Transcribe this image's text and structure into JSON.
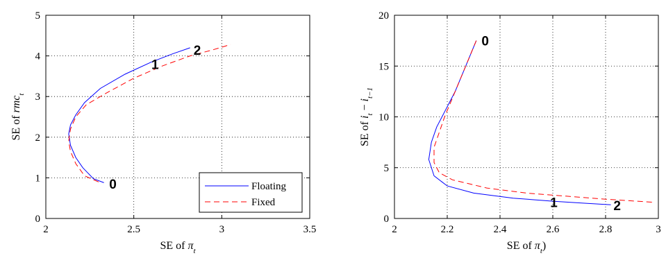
{
  "chart_data": [
    {
      "type": "line",
      "xlabel": "SE of π_t",
      "ylabel": "SE of rmc_t",
      "xlim": [
        2,
        3.5
      ],
      "ylim": [
        0,
        5
      ],
      "xticks": [
        "2",
        "2.5",
        "3",
        "3.5"
      ],
      "yticks": [
        "0",
        "1",
        "2",
        "3",
        "4",
        "5"
      ],
      "grid": true,
      "legend": {
        "position": "bottom-right",
        "entries": [
          "Floating",
          "Fixed"
        ]
      },
      "series": [
        {
          "name": "Floating",
          "color": "#0000ff",
          "dash": "solid",
          "x": [
            2.33,
            2.27,
            2.21,
            2.17,
            2.14,
            2.13,
            2.14,
            2.17,
            2.22,
            2.31,
            2.45,
            2.6,
            2.72,
            2.82
          ],
          "y": [
            0.88,
            0.98,
            1.25,
            1.5,
            1.8,
            2.08,
            2.3,
            2.55,
            2.85,
            3.2,
            3.55,
            3.85,
            4.05,
            4.2
          ]
        },
        {
          "name": "Fixed",
          "color": "#ff0000",
          "dash": "dashed",
          "x": [
            2.3,
            2.22,
            2.17,
            2.14,
            2.13,
            2.14,
            2.17,
            2.23,
            2.35,
            2.5,
            2.66,
            2.82,
            2.95,
            3.05
          ],
          "y": [
            0.9,
            1.05,
            1.35,
            1.65,
            1.9,
            2.2,
            2.5,
            2.8,
            3.1,
            3.45,
            3.75,
            4.0,
            4.15,
            4.28
          ]
        }
      ],
      "annotations": [
        {
          "text": "0",
          "x": 2.36,
          "y": 0.85
        },
        {
          "text": "1",
          "x": 2.6,
          "y": 3.8
        },
        {
          "text": "2",
          "x": 2.84,
          "y": 4.15
        }
      ]
    },
    {
      "type": "line",
      "xlabel": "SE of π_t)",
      "ylabel": "SE of i_t − i_t−1",
      "xlim": [
        2,
        3
      ],
      "ylim": [
        0,
        20
      ],
      "xticks": [
        "2",
        "2.2",
        "2.4",
        "2.6",
        "2.8",
        "3"
      ],
      "yticks": [
        "0",
        "5",
        "10",
        "15",
        "20"
      ],
      "grid": true,
      "series": [
        {
          "name": "Floating",
          "color": "#0000ff",
          "dash": "solid",
          "x": [
            2.31,
            2.27,
            2.23,
            2.19,
            2.16,
            2.14,
            2.13,
            2.15,
            2.2,
            2.3,
            2.45,
            2.6,
            2.72,
            2.82
          ],
          "y": [
            17.5,
            15.0,
            12.5,
            10.5,
            9.0,
            7.5,
            5.8,
            4.2,
            3.2,
            2.5,
            2.0,
            1.7,
            1.5,
            1.35
          ]
        },
        {
          "name": "Fixed",
          "color": "#ff0000",
          "dash": "dashed",
          "x": [
            2.31,
            2.27,
            2.23,
            2.19,
            2.17,
            2.15,
            2.15,
            2.17,
            2.22,
            2.35,
            2.5,
            2.65,
            2.8,
            2.98
          ],
          "y": [
            17.5,
            15.0,
            12.5,
            10.0,
            8.5,
            7.0,
            5.5,
            4.5,
            3.8,
            3.0,
            2.5,
            2.2,
            1.9,
            1.6
          ]
        }
      ],
      "annotations": [
        {
          "text": "0",
          "x": 2.33,
          "y": 17.5
        },
        {
          "text": "1",
          "x": 2.59,
          "y": 1.6
        },
        {
          "text": "2",
          "x": 2.83,
          "y": 1.3
        }
      ]
    }
  ]
}
